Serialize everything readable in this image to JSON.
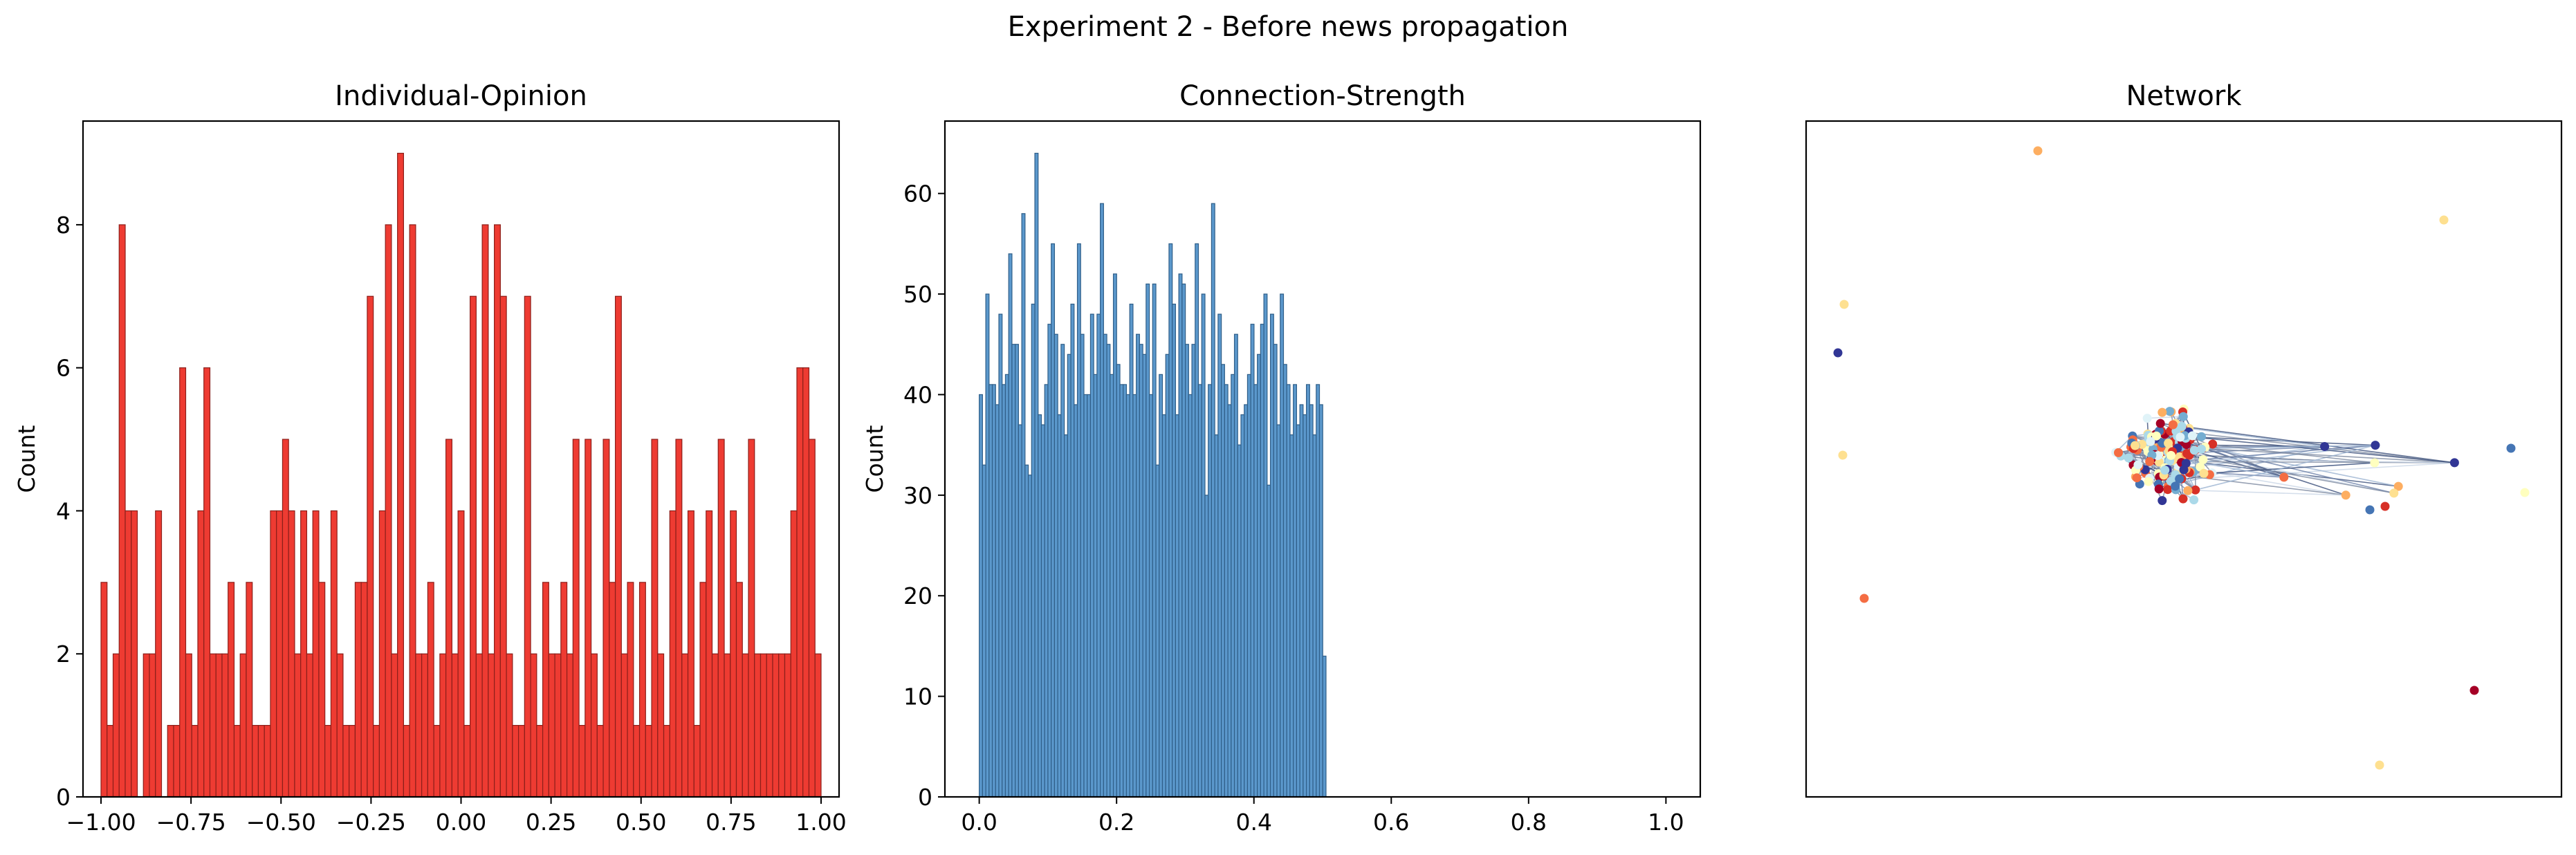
{
  "suptitle": "Experiment 2 - Before news propagation",
  "chart_data": [
    {
      "type": "bar",
      "title": "Individual-Opinion",
      "xlabel": "",
      "ylabel": "Count",
      "xlim": [
        -1.05,
        1.05
      ],
      "ylim": [
        0,
        9.45
      ],
      "bin_range": [
        -1.0,
        1.0
      ],
      "values": [
        3,
        1,
        2,
        8,
        4,
        4,
        0,
        2,
        2,
        4,
        0,
        1,
        1,
        6,
        2,
        1,
        4,
        6,
        2,
        2,
        2,
        3,
        1,
        2,
        3,
        1,
        1,
        1,
        4,
        4,
        5,
        4,
        2,
        4,
        2,
        4,
        3,
        1,
        4,
        2,
        1,
        1,
        3,
        3,
        7,
        1,
        4,
        8,
        2,
        9,
        1,
        8,
        2,
        2,
        3,
        1,
        2,
        5,
        2,
        4,
        1,
        7,
        2,
        8,
        2,
        8,
        7,
        2,
        1,
        1,
        7,
        2,
        1,
        3,
        2,
        2,
        3,
        2,
        5,
        1,
        5,
        2,
        1,
        5,
        3,
        7,
        2,
        3,
        1,
        3,
        1,
        5,
        2,
        1,
        4,
        5,
        2,
        4,
        1,
        3,
        4,
        2,
        5,
        2,
        4,
        3,
        2,
        5,
        2,
        2,
        2,
        2,
        2,
        2,
        4,
        6,
        6,
        5,
        2
      ],
      "xticks": [
        "−1.00",
        "−0.75",
        "−0.50",
        "−0.25",
        "0.00",
        "0.25",
        "0.50",
        "0.75",
        "1.00"
      ],
      "yticks": [
        "0",
        "2",
        "4",
        "6",
        "8"
      ],
      "bar_color": "#ee3b32",
      "edge_color": "#8c1f1a"
    },
    {
      "type": "bar",
      "title": "Connection-Strength",
      "xlabel": "",
      "ylabel": "Count",
      "xlim": [
        -0.05,
        1.05
      ],
      "ylim": [
        0,
        67.2
      ],
      "bin_range": [
        0.0,
        0.505
      ],
      "values": [
        40,
        33,
        50,
        41,
        41,
        39,
        48,
        41,
        42,
        54,
        45,
        45,
        37,
        58,
        33,
        32,
        49,
        64,
        38,
        37,
        41,
        47,
        55,
        46,
        38,
        45,
        36,
        44,
        49,
        39,
        55,
        46,
        40,
        40,
        48,
        42,
        48,
        59,
        46,
        45,
        42,
        52,
        43,
        41,
        41,
        40,
        49,
        40,
        46,
        45,
        44,
        51,
        40,
        51,
        33,
        42,
        38,
        44,
        55,
        49,
        38,
        52,
        51,
        45,
        40,
        45,
        55,
        41,
        50,
        30,
        41,
        59,
        36,
        48,
        43,
        41,
        39,
        42,
        46,
        35,
        38,
        39,
        42,
        47,
        41,
        44,
        47,
        50,
        31,
        48,
        45,
        37,
        50,
        43,
        41,
        36,
        41,
        37,
        39,
        38,
        41,
        39,
        36,
        41,
        39,
        14
      ],
      "xticks": [
        "0.0",
        "0.2",
        "0.4",
        "0.6",
        "0.8",
        "1.0"
      ],
      "yticks": [
        "0",
        "10",
        "20",
        "30",
        "40",
        "50",
        "60"
      ],
      "bar_color": "#5b98cc",
      "edge_color": "#2f5e88"
    },
    {
      "type": "scatter",
      "title": "Network",
      "palette": [
        "#a50026",
        "#d73027",
        "#f46d43",
        "#fdae61",
        "#fee090",
        "#ffffbf",
        "#e0f3f8",
        "#abd9e9",
        "#74add1",
        "#4575b4",
        "#313695"
      ]
    }
  ]
}
